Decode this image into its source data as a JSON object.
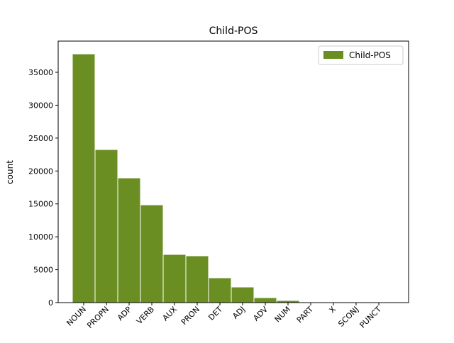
{
  "chart_data": {
    "type": "bar",
    "title": "Child-POS",
    "y_label": "count",
    "categories": [
      "NOUN",
      "PROPN",
      "ADP",
      "VERB",
      "AUX",
      "PRON",
      "DET",
      "ADJ",
      "ADV",
      "NUM",
      "PART",
      "X",
      "SCONJ",
      "PUNCT"
    ],
    "series": [
      {
        "name": "Child-POS",
        "color": "#6b8e23",
        "values": [
          37800,
          23260,
          18950,
          14860,
          7320,
          7110,
          3770,
          2370,
          750,
          320,
          30,
          10,
          5,
          2
        ]
      }
    ],
    "ylim": [
      0,
      39740
    ],
    "yticks": [
      0,
      5000,
      10000,
      15000,
      20000,
      25000,
      30000,
      35000
    ],
    "legend": "upper right",
    "grid": false
  }
}
